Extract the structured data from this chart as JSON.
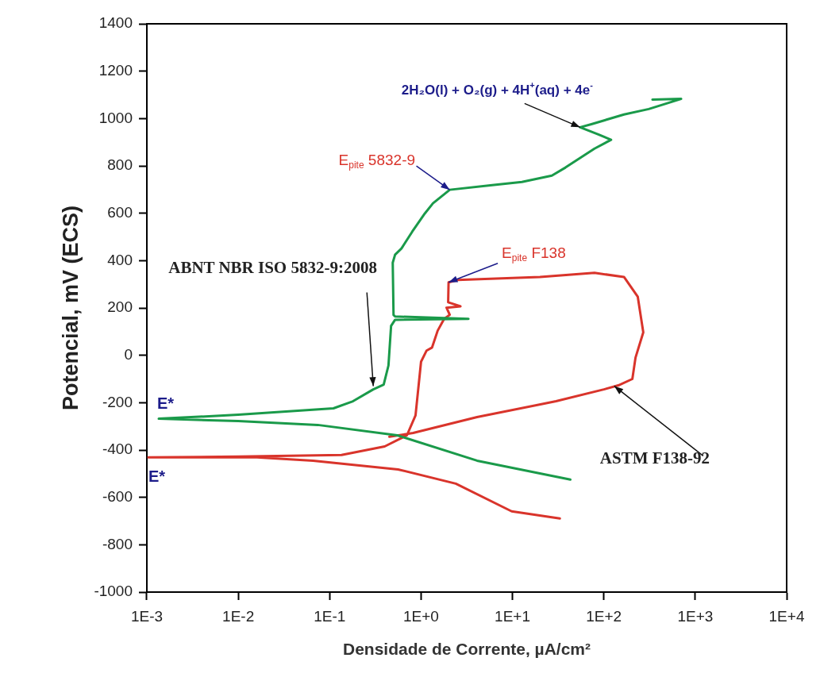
{
  "chart_data": {
    "type": "line",
    "xlabel": "Densidade de Corrente, µA/cm²",
    "ylabel": "Potencial, mV (ECS)",
    "log": "x",
    "grid": false,
    "legend": false,
    "marker": "none",
    "line_style": "solid",
    "xlim": [
      0.001,
      10000
    ],
    "xticks": [
      {
        "value": 0.001,
        "label": "1E-3"
      },
      {
        "value": 0.01,
        "label": "1E-2"
      },
      {
        "value": 0.1,
        "label": "1E-1"
      },
      {
        "value": 1,
        "label": "1E+0"
      },
      {
        "value": 10,
        "label": "1E+1"
      },
      {
        "value": 100,
        "label": "1E+2"
      },
      {
        "value": 1000,
        "label": "1E+3"
      },
      {
        "value": 10000,
        "label": "1E+4"
      }
    ],
    "ylim": [
      -1000,
      1400
    ],
    "yticks": [
      -1000,
      -800,
      -600,
      -400,
      -200,
      0,
      200,
      400,
      600,
      800,
      1000,
      1200,
      1400
    ],
    "series": [
      {
        "color": "#1a9a4a",
        "x": [
          43,
          4.1,
          0.55,
          0.074,
          0.01,
          0.00135,
          0.01,
          0.11,
          0.18,
          0.3,
          0.39,
          0.44,
          0.47,
          0.52,
          3.3,
          0.52,
          0.5,
          0.49,
          0.52,
          0.61,
          0.8,
          1.1,
          1.35,
          2.06,
          6,
          12.7,
          27,
          38,
          79,
          120,
          87,
          55,
          73,
          166,
          310,
          700,
          340
        ],
        "values": [
          -525,
          -445,
          -338,
          -294,
          -278,
          -268,
          -251,
          -224,
          -194,
          -144,
          -124,
          -43,
          124,
          150,
          154,
          164,
          170,
          391,
          425,
          451,
          522,
          599,
          642,
          699,
          719,
          732,
          759,
          793,
          873,
          910,
          933,
          963,
          976,
          1017,
          1040,
          1083,
          1080
        ]
      },
      {
        "color": "#d9342b",
        "x": [
          33,
          9.8,
          2.4,
          0.56,
          0.066,
          0.016,
          0.00104,
          0.01,
          0.135,
          0.4,
          0.7,
          0.87,
          1,
          1.15,
          1.32,
          1.52,
          1.79,
          2.06,
          1.9,
          2.7,
          1.98,
          2,
          2.5,
          20,
          79,
          166,
          235,
          270,
          222,
          205,
          144,
          100,
          30,
          4.1,
          0.82,
          0.45
        ],
        "values": [
          -689,
          -659,
          -542,
          -482,
          -445,
          -431,
          -431,
          -428,
          -421,
          -385,
          -338,
          -254,
          -27,
          20,
          33,
          104,
          154,
          171,
          201,
          207,
          224,
          308,
          318,
          331,
          348,
          331,
          247,
          97,
          -10,
          -100,
          -127,
          -144,
          -194,
          -261,
          -328,
          -344
        ]
      }
    ],
    "annotations": [
      {
        "text": "E$_{pite}$ 5832-9",
        "x": 2.06,
        "y": 699
      },
      {
        "text": "E$_{pite}$ F138",
        "x": 2,
        "y": 308
      },
      {
        "text": "2H₂O(l) + O₂(g) + 4H$^{+}$(aq) + 4e$^{-}$",
        "x": 55,
        "y": 963
      },
      {
        "text": "ABNT NBR ISO 5832-9:2008",
        "x": 0.3,
        "y": -130
      },
      {
        "text": "ASTM F138-92",
        "x": 130,
        "y": -130
      },
      {
        "text": "E*",
        "x": 0.00135,
        "y": -268
      },
      {
        "text": "E*",
        "x": 0.00104,
        "y": -431
      }
    ]
  }
}
